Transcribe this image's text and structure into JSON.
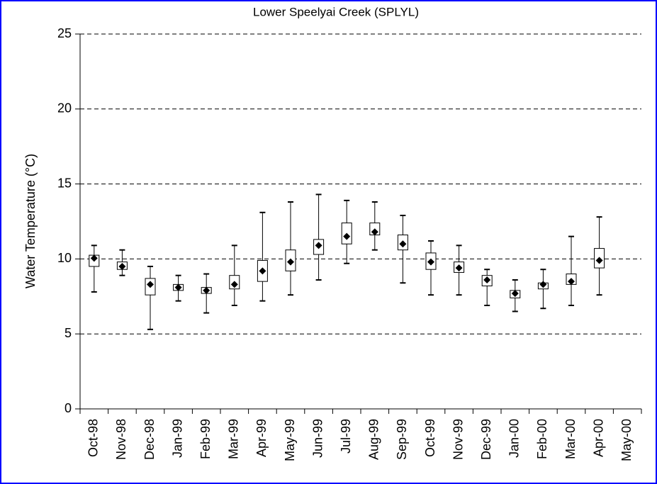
{
  "chart_data": {
    "type": "box",
    "title": "Lower Speelyai Creek (SPLYL)",
    "y_label": "Water Temperature (°C)",
    "categories": [
      "Oct-98",
      "Nov-98",
      "Dec-98",
      "Jan-99",
      "Feb-99",
      "Mar-99",
      "Apr-99",
      "May-99",
      "Jun-99",
      "Jul-99",
      "Aug-99",
      "Sep-99",
      "Oct-99",
      "Nov-99",
      "Dec-99",
      "Jan-00",
      "Feb-00",
      "Mar-00",
      "Apr-00",
      "May-00"
    ],
    "min": [
      7.8,
      8.9,
      5.3,
      7.2,
      6.4,
      6.9,
      7.2,
      7.6,
      8.6,
      9.7,
      10.6,
      8.4,
      7.6,
      7.6,
      6.9,
      6.5,
      6.7,
      6.9,
      7.6,
      null
    ],
    "q1": [
      9.5,
      9.3,
      7.6,
      7.9,
      7.7,
      8.0,
      8.5,
      9.2,
      10.3,
      11.0,
      11.6,
      10.6,
      9.3,
      9.1,
      8.2,
      7.4,
      8.0,
      8.3,
      9.4,
      null
    ],
    "mean": [
      10.05,
      9.5,
      8.3,
      8.1,
      7.9,
      8.3,
      9.2,
      9.8,
      10.9,
      11.5,
      11.8,
      11.0,
      9.8,
      9.4,
      8.6,
      7.7,
      8.3,
      8.5,
      9.9,
      null
    ],
    "q3": [
      10.25,
      9.8,
      8.7,
      8.3,
      8.1,
      8.9,
      9.9,
      10.6,
      11.3,
      12.4,
      12.4,
      11.6,
      10.4,
      9.8,
      8.9,
      7.9,
      8.4,
      9.0,
      10.7,
      null
    ],
    "max": [
      10.9,
      10.6,
      9.5,
      8.9,
      9.0,
      10.9,
      13.1,
      13.8,
      14.3,
      13.9,
      13.8,
      12.9,
      11.2,
      10.9,
      9.3,
      8.6,
      9.3,
      11.5,
      12.8,
      null
    ],
    "ylim": [
      0,
      25
    ],
    "yticks": [
      0,
      5,
      10,
      15,
      20,
      25
    ],
    "grid": true,
    "box_color": "#ffffff",
    "line_color": "#000000"
  }
}
